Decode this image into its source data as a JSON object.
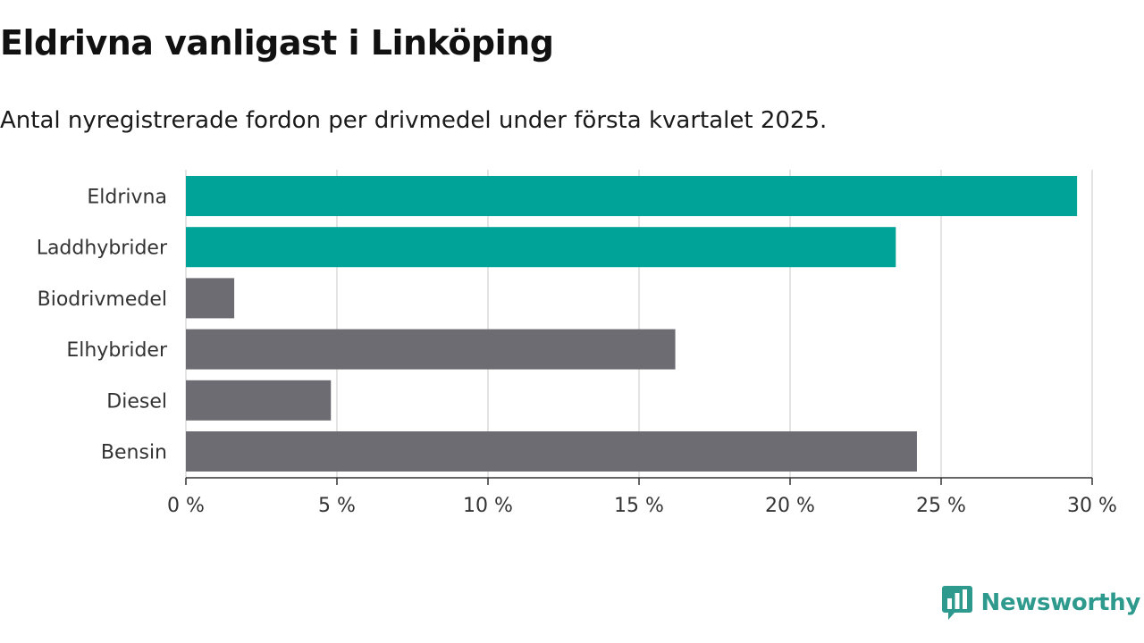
{
  "title": "Eldrivna vanligast i Linköping",
  "subtitle": "Antal nyregistrerade fordon per drivmedel under första kvartalet 2025.",
  "brand": {
    "name": "Newsworthy",
    "icon": "bar-chart-speech-bubble-icon",
    "color": "#2e9a8e"
  },
  "colors": {
    "highlight": "#00a398",
    "default": "#6e6c73",
    "grid": "#dcdcdc",
    "axis": "#333333"
  },
  "chart_data": {
    "type": "bar",
    "orientation": "horizontal",
    "categories": [
      "Eldrivna",
      "Laddhybrider",
      "Biodrivmedel",
      "Elhybrider",
      "Diesel",
      "Bensin"
    ],
    "values": [
      29.5,
      23.5,
      1.6,
      16.2,
      4.8,
      24.2
    ],
    "highlighted": [
      true,
      true,
      false,
      false,
      false,
      false
    ],
    "xlim": [
      0,
      30
    ],
    "xticks": [
      0,
      5,
      10,
      15,
      20,
      25,
      30
    ],
    "xtick_labels": [
      "0 %",
      "5 %",
      "10 %",
      "15 %",
      "20 %",
      "25 %",
      "30 %"
    ],
    "grid": true
  }
}
